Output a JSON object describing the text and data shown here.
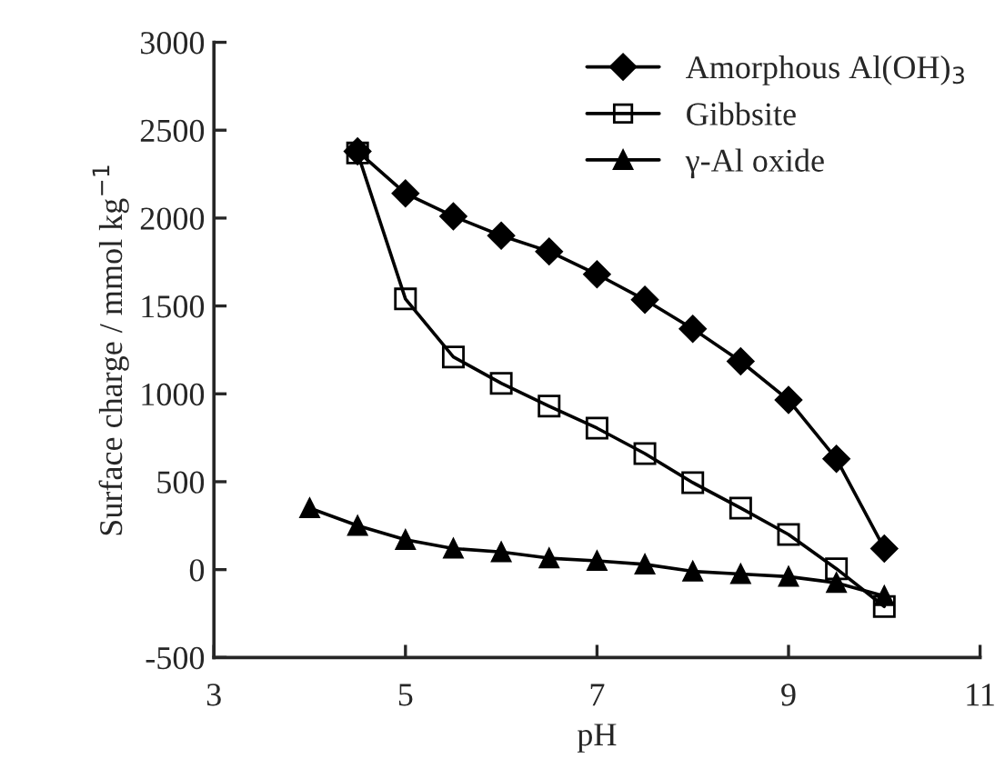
{
  "chart_data": {
    "type": "line",
    "xlabel": "pH",
    "ylabel": "Surface charge / mmol kg$^{−1}$",
    "xlim": [
      3,
      11
    ],
    "xticks": [
      3,
      5,
      7,
      9,
      11
    ],
    "ylim": [
      -500,
      3000
    ],
    "yticks": [
      {
        "value": -500,
        "label": "-500"
      },
      0,
      500,
      1000,
      1500,
      2000,
      2500,
      3000
    ],
    "grid": false,
    "legend": "top right",
    "line_style": "solid",
    "series": [
      {
        "name": "Amorphous Al(OH)$_{3}$",
        "color": "#000000",
        "marker": "diamond",
        "x": [
          4.5,
          5,
          5.5,
          6,
          6.5,
          7,
          7.5,
          8,
          8.5,
          9,
          9.5,
          10
        ],
        "values": [
          2380,
          2140,
          2010,
          1900,
          1810,
          1680,
          1535,
          1370,
          1185,
          965,
          630,
          120
        ]
      },
      {
        "name": "Gibbsite",
        "color": "#000000",
        "marker": "square",
        "x": [
          4.5,
          5,
          5.5,
          6,
          6.5,
          7,
          7.5,
          8,
          8.5,
          9,
          9.5,
          10
        ],
        "values": [
          2370,
          1540,
          1210,
          1060,
          930,
          805,
          660,
          495,
          350,
          200,
          5,
          -210
        ]
      },
      {
        "name": "γ-Al oxide",
        "color": "#000000",
        "marker": "triangle",
        "x": [
          4,
          4.5,
          5,
          5.5,
          6,
          6.5,
          7,
          7.5,
          8,
          8.5,
          9,
          9.5,
          10
        ],
        "values": [
          350,
          250,
          170,
          120,
          100,
          65,
          50,
          30,
          -10,
          -25,
          -40,
          -75,
          -150
        ]
      }
    ]
  }
}
